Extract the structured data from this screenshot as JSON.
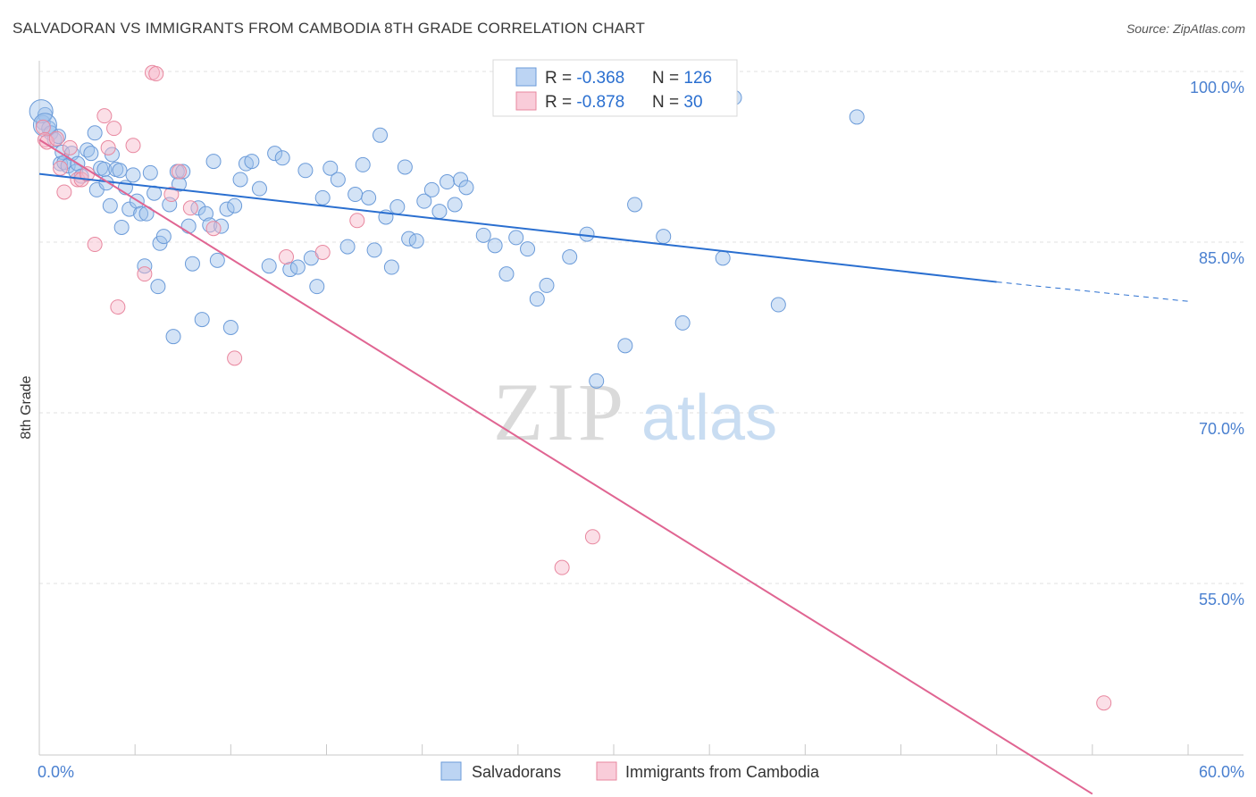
{
  "title": "SALVADORAN VS IMMIGRANTS FROM CAMBODIA 8TH GRADE CORRELATION CHART",
  "source": "Source: ZipAtlas.com",
  "watermark": {
    "zip": "ZIP",
    "atlas": "atlas"
  },
  "chart_data": {
    "type": "scatter",
    "ylabel": "8th Grade",
    "xlim": [
      0,
      60
    ],
    "ylim": [
      38,
      100
    ],
    "x_tick_labels": [
      {
        "value": 0,
        "label": "0.0%"
      },
      {
        "value": 60,
        "label": "60.0%"
      }
    ],
    "y_tick_labels": [
      {
        "value": 100,
        "label": "100.0%"
      },
      {
        "value": 85,
        "label": "85.0%"
      },
      {
        "value": 70,
        "label": "70.0%"
      },
      {
        "value": 55,
        "label": "55.0%"
      }
    ],
    "legend": {
      "rows": [
        {
          "r_label": "R = ",
          "r_value": "-0.368",
          "n_label": "N = ",
          "n_value": "126"
        },
        {
          "r_label": "R = ",
          "r_value": "-0.878",
          "n_label": "N = ",
          "n_value": "30"
        }
      ]
    },
    "series": [
      {
        "name": "Salvadorans",
        "color": "#9dc0ec",
        "stroke": "#6b9bd9",
        "trend_color": "#2a6fd0",
        "trend": {
          "x0": 0,
          "y0": 91.0,
          "x1": 50,
          "y1": 81.5,
          "dash_to_x": 60,
          "dash_to_y": 79.8
        },
        "points": [
          [
            0.2,
            95.5
          ],
          [
            0.3,
            96.2
          ],
          [
            0.5,
            95
          ],
          [
            0.6,
            94.6
          ],
          [
            0.8,
            94
          ],
          [
            1,
            94.3
          ],
          [
            1.1,
            91.9
          ],
          [
            1.2,
            92.9
          ],
          [
            1.3,
            92
          ],
          [
            1.5,
            91.7
          ],
          [
            1.7,
            92.8
          ],
          [
            1.9,
            91.2
          ],
          [
            2,
            91.9
          ],
          [
            2.2,
            90.8
          ],
          [
            2.5,
            93.1
          ],
          [
            2.7,
            92.8
          ],
          [
            2.9,
            94.6
          ],
          [
            3,
            89.6
          ],
          [
            3.2,
            91.5
          ],
          [
            3.4,
            91.4
          ],
          [
            3.5,
            90.2
          ],
          [
            3.7,
            88.2
          ],
          [
            3.8,
            92.7
          ],
          [
            4,
            91.4
          ],
          [
            4.2,
            91.3
          ],
          [
            4.3,
            86.3
          ],
          [
            4.5,
            89.8
          ],
          [
            4.7,
            87.9
          ],
          [
            4.9,
            90.9
          ],
          [
            5.1,
            88.6
          ],
          [
            5.3,
            87.5
          ],
          [
            5.5,
            82.9
          ],
          [
            5.6,
            87.5
          ],
          [
            5.8,
            91.1
          ],
          [
            6,
            89.3
          ],
          [
            6.2,
            81.1
          ],
          [
            6.3,
            84.9
          ],
          [
            6.5,
            85.5
          ],
          [
            6.8,
            88.3
          ],
          [
            7,
            76.7
          ],
          [
            7.2,
            91.2
          ],
          [
            7.3,
            90.1
          ],
          [
            7.5,
            91.2
          ],
          [
            7.8,
            86.4
          ],
          [
            8,
            83.1
          ],
          [
            8.3,
            88
          ],
          [
            8.5,
            78.2
          ],
          [
            8.7,
            87.5
          ],
          [
            8.9,
            86.5
          ],
          [
            9.1,
            92.1
          ],
          [
            9.3,
            83.4
          ],
          [
            9.5,
            86.4
          ],
          [
            9.8,
            87.9
          ],
          [
            10,
            77.5
          ],
          [
            10.2,
            88.2
          ],
          [
            10.5,
            90.5
          ],
          [
            10.8,
            91.9
          ],
          [
            11.1,
            92.1
          ],
          [
            11.5,
            89.7
          ],
          [
            12,
            82.9
          ],
          [
            12.3,
            92.8
          ],
          [
            12.7,
            92.4
          ],
          [
            13.1,
            82.6
          ],
          [
            13.5,
            82.8
          ],
          [
            13.9,
            91.3
          ],
          [
            14.2,
            83.6
          ],
          [
            14.5,
            81.1
          ],
          [
            14.8,
            88.9
          ],
          [
            15.2,
            91.5
          ],
          [
            15.6,
            90.5
          ],
          [
            16.1,
            84.6
          ],
          [
            16.5,
            89.2
          ],
          [
            16.9,
            91.8
          ],
          [
            17.2,
            88.9
          ],
          [
            17.5,
            84.3
          ],
          [
            17.8,
            94.4
          ],
          [
            18.1,
            87.2
          ],
          [
            18.4,
            82.8
          ],
          [
            18.7,
            88.1
          ],
          [
            19.1,
            91.6
          ],
          [
            19.3,
            85.3
          ],
          [
            19.7,
            85.1
          ],
          [
            20.1,
            88.6
          ],
          [
            20.5,
            89.6
          ],
          [
            20.9,
            87.7
          ],
          [
            21.3,
            90.3
          ],
          [
            21.7,
            88.3
          ],
          [
            22,
            90.5
          ],
          [
            22.3,
            89.8
          ],
          [
            23.2,
            85.6
          ],
          [
            23.8,
            84.7
          ],
          [
            24.4,
            82.2
          ],
          [
            24.9,
            85.4
          ],
          [
            25.5,
            84.4
          ],
          [
            26,
            80
          ],
          [
            26.5,
            81.2
          ],
          [
            27.7,
            83.7
          ],
          [
            28.6,
            85.7
          ],
          [
            29.1,
            72.8
          ],
          [
            30.6,
            75.9
          ],
          [
            31.1,
            88.3
          ],
          [
            32.6,
            85.5
          ],
          [
            33.6,
            77.9
          ],
          [
            35.7,
            83.6
          ],
          [
            36.3,
            97.7
          ],
          [
            38.6,
            79.5
          ],
          [
            42.7,
            96
          ]
        ],
        "large_points": [
          [
            0.1,
            96.5
          ],
          [
            0.3,
            95.3
          ]
        ]
      },
      {
        "name": "Immigrants from Cambodia",
        "color": "#f6b8c9",
        "stroke": "#e8879f",
        "trend_color": "#e06592",
        "trend": {
          "x0": 0,
          "y0": 94.0,
          "x1": 55,
          "y1": 36.5
        },
        "points": [
          [
            0.2,
            95.1
          ],
          [
            0.3,
            94
          ],
          [
            0.4,
            93.8
          ],
          [
            0.9,
            94.1
          ],
          [
            1.1,
            91.5
          ],
          [
            1.3,
            89.4
          ],
          [
            1.6,
            93.3
          ],
          [
            2,
            90.5
          ],
          [
            2.2,
            90.5
          ],
          [
            2.5,
            91
          ],
          [
            2.9,
            84.8
          ],
          [
            3.4,
            96.1
          ],
          [
            3.6,
            93.3
          ],
          [
            3.9,
            95
          ],
          [
            4.1,
            79.3
          ],
          [
            4.9,
            93.5
          ],
          [
            5.5,
            82.2
          ],
          [
            5.9,
            99.9
          ],
          [
            6.1,
            99.8
          ],
          [
            6.9,
            89.2
          ],
          [
            7.3,
            91.2
          ],
          [
            7.9,
            88
          ],
          [
            9.1,
            86.2
          ],
          [
            10.2,
            74.8
          ],
          [
            12.9,
            83.7
          ],
          [
            14.8,
            84.1
          ],
          [
            16.6,
            86.9
          ],
          [
            27.3,
            56.4
          ],
          [
            28.9,
            59.1
          ],
          [
            55.6,
            44.5
          ]
        ]
      }
    ]
  }
}
